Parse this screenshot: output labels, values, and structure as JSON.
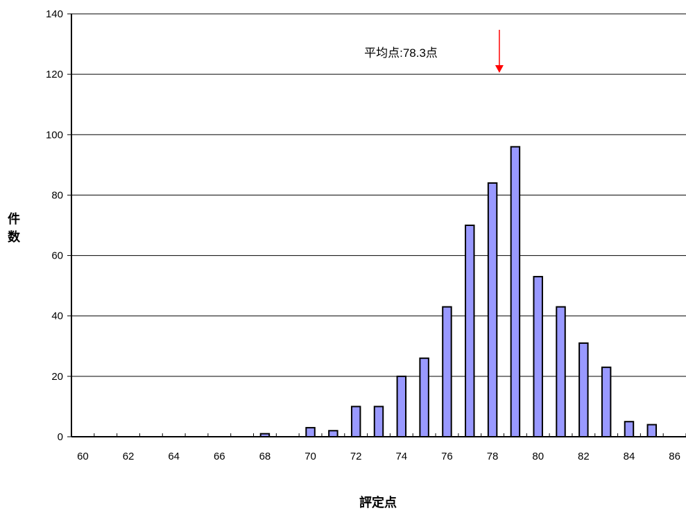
{
  "chart_data": {
    "type": "bar",
    "title": "",
    "xlabel": "評定点",
    "ylabel": "件数",
    "categories": [
      60,
      61,
      62,
      63,
      64,
      65,
      66,
      67,
      68,
      69,
      70,
      71,
      72,
      73,
      74,
      75,
      76,
      77,
      78,
      79,
      80,
      81,
      82,
      83,
      84,
      85,
      86
    ],
    "values": [
      0,
      0,
      0,
      0,
      0,
      0,
      0,
      0,
      1,
      0,
      3,
      2,
      10,
      10,
      20,
      26,
      43,
      70,
      84,
      96,
      53,
      43,
      31,
      23,
      5,
      4,
      0
    ],
    "x_tick_labels": [
      "60",
      "62",
      "64",
      "66",
      "68",
      "70",
      "72",
      "74",
      "76",
      "78",
      "80",
      "82",
      "84",
      "86"
    ],
    "y_tick_labels": [
      "0",
      "20",
      "40",
      "60",
      "80",
      "100",
      "120",
      "140"
    ],
    "ylim": [
      0,
      140
    ],
    "y_step": 20,
    "grid": true,
    "legend": "none",
    "bar_color": "#9999ff",
    "annotation": {
      "text": "平均点:78.3点",
      "x": 78.3,
      "arrow_color": "#ff0000"
    }
  }
}
